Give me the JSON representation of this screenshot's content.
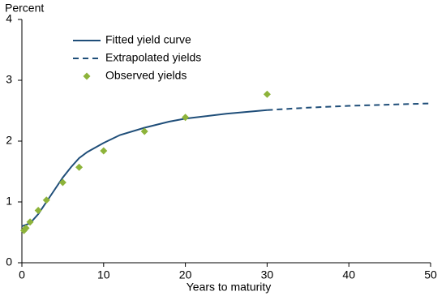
{
  "chart_data": {
    "type": "line",
    "y_label": "Percent",
    "x_label": "Years to maturity",
    "xlim": [
      0,
      50
    ],
    "xticks": [
      0,
      10,
      20,
      30,
      40,
      50
    ],
    "ylim": [
      0,
      4
    ],
    "yticks": [
      0,
      1,
      2,
      3,
      4
    ],
    "legend": "upper left",
    "series": [
      {
        "name": "Fitted yield curve",
        "type": "line",
        "linestyle": "solid",
        "color": "#1f4e79",
        "x": [
          0,
          1,
          2,
          3,
          4,
          5,
          6,
          7,
          8,
          10,
          12,
          15,
          18,
          20,
          25,
          30
        ],
        "values": [
          0.6,
          0.65,
          0.8,
          1.0,
          1.2,
          1.4,
          1.57,
          1.72,
          1.82,
          1.97,
          2.1,
          2.22,
          2.32,
          2.37,
          2.45,
          2.51
        ]
      },
      {
        "name": "Extrapolated yields",
        "type": "line",
        "linestyle": "dashed",
        "color": "#1f4e79",
        "x": [
          30,
          35,
          40,
          45,
          50
        ],
        "values": [
          2.51,
          2.55,
          2.58,
          2.6,
          2.62
        ]
      },
      {
        "name": "Observed yields",
        "type": "scatter",
        "color": "#8db33a",
        "x": [
          0.25,
          0.5,
          1,
          2,
          3,
          5,
          7,
          10,
          15,
          20,
          30
        ],
        "values": [
          0.53,
          0.57,
          0.67,
          0.86,
          1.03,
          1.32,
          1.57,
          1.84,
          2.16,
          2.39,
          2.77
        ]
      }
    ]
  }
}
